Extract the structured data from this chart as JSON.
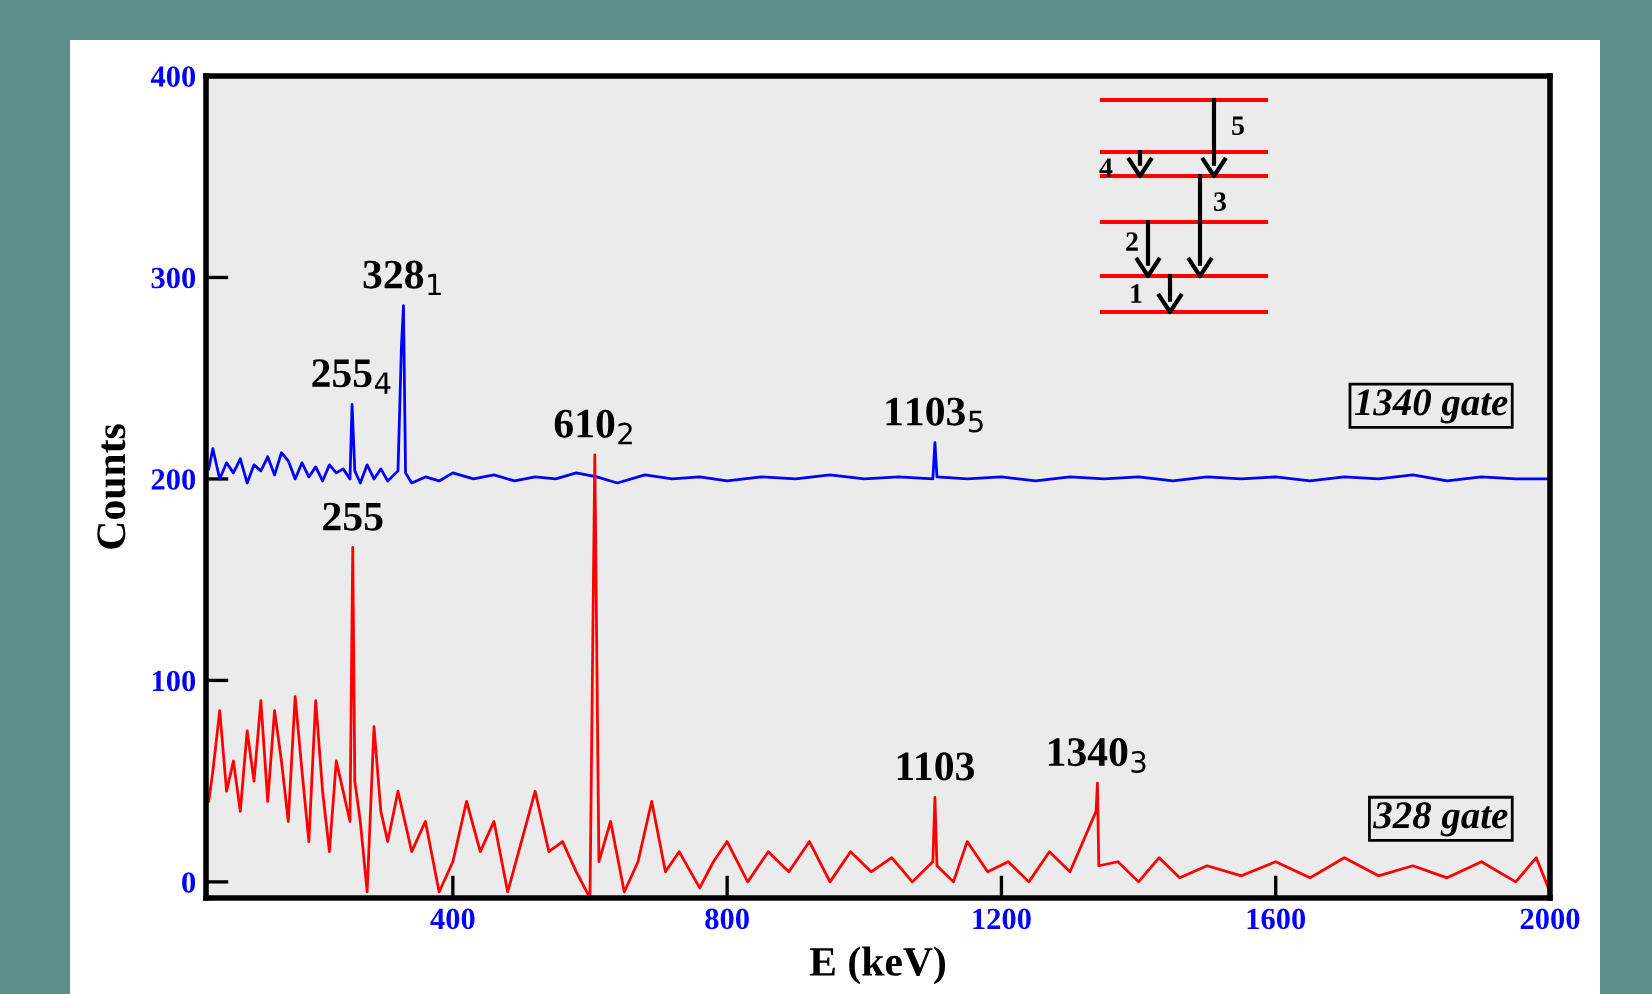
{
  "chart_data": {
    "type": "line",
    "xlabel": "E (keV)",
    "ylabel": "Counts",
    "xlim": [
      40,
      2000
    ],
    "ylim": [
      -8,
      400
    ],
    "xticks": [
      400,
      800,
      1200,
      1600,
      2000
    ],
    "yticks": [
      0,
      100,
      200,
      300,
      400
    ],
    "grid": false,
    "legend": false,
    "series": [
      {
        "name": "1340 gate",
        "color": "#0000ff",
        "x": [
          44,
          50,
          60,
          70,
          80,
          90,
          100,
          110,
          120,
          130,
          140,
          150,
          160,
          170,
          180,
          190,
          200,
          210,
          220,
          230,
          240,
          250,
          253,
          257,
          265,
          275,
          285,
          295,
          305,
          320,
          325,
          328,
          331,
          340,
          360,
          380,
          400,
          430,
          460,
          490,
          520,
          550,
          580,
          610,
          640,
          680,
          720,
          760,
          800,
          850,
          900,
          950,
          1000,
          1050,
          1100,
          1103,
          1106,
          1150,
          1200,
          1250,
          1300,
          1350,
          1400,
          1450,
          1500,
          1550,
          1600,
          1650,
          1700,
          1750,
          1800,
          1850,
          1900,
          1950,
          2000
        ],
        "values": [
          205,
          215,
          200,
          208,
          203,
          210,
          198,
          207,
          204,
          211,
          202,
          213,
          209,
          200,
          208,
          201,
          206,
          199,
          207,
          203,
          205,
          200,
          237,
          204,
          198,
          207,
          200,
          205,
          199,
          204,
          266,
          286,
          203,
          198,
          201,
          199,
          203,
          200,
          202,
          199,
          201,
          200,
          203,
          201,
          198,
          202,
          200,
          201,
          199,
          201,
          200,
          202,
          200,
          201,
          200,
          218,
          201,
          200,
          201,
          199,
          201,
          200,
          201,
          199,
          201,
          200,
          201,
          199,
          201,
          200,
          202,
          199,
          201,
          200,
          200
        ]
      },
      {
        "name": "328 gate",
        "color": "#ff0000",
        "x": [
          44,
          50,
          60,
          70,
          80,
          90,
          100,
          110,
          120,
          130,
          140,
          150,
          160,
          170,
          180,
          190,
          200,
          210,
          220,
          230,
          240,
          250,
          254,
          257,
          265,
          275,
          285,
          295,
          305,
          320,
          340,
          360,
          380,
          400,
          420,
          440,
          460,
          480,
          500,
          520,
          540,
          560,
          580,
          600,
          607,
          613,
          630,
          650,
          670,
          690,
          710,
          730,
          760,
          780,
          800,
          830,
          860,
          890,
          920,
          950,
          980,
          1010,
          1040,
          1070,
          1100,
          1103,
          1106,
          1130,
          1150,
          1180,
          1210,
          1240,
          1270,
          1300,
          1338,
          1340,
          1342,
          1370,
          1400,
          1430,
          1460,
          1500,
          1550,
          1600,
          1650,
          1700,
          1750,
          1800,
          1850,
          1900,
          1950,
          1980,
          2000
        ],
        "values": [
          40,
          55,
          85,
          45,
          60,
          35,
          75,
          50,
          90,
          40,
          85,
          60,
          30,
          92,
          55,
          20,
          90,
          45,
          15,
          60,
          45,
          30,
          166,
          50,
          30,
          -5,
          77,
          35,
          20,
          45,
          15,
          30,
          -5,
          10,
          40,
          15,
          30,
          -5,
          20,
          45,
          15,
          20,
          5,
          -8,
          212,
          10,
          30,
          -5,
          10,
          40,
          5,
          15,
          -3,
          10,
          20,
          0,
          15,
          5,
          20,
          0,
          15,
          5,
          12,
          0,
          10,
          42,
          8,
          0,
          20,
          5,
          10,
          0,
          15,
          5,
          35,
          49,
          8,
          10,
          0,
          12,
          2,
          8,
          3,
          10,
          2,
          12,
          3,
          8,
          2,
          10,
          0,
          12,
          -5
        ]
      }
    ],
    "annotations": [
      {
        "text": "328$_{1}$",
        "x": 328,
        "y": 286
      },
      {
        "text": "255$_{4}$",
        "x": 253,
        "y": 237
      },
      {
        "text": "610$_{2}$",
        "x": 607,
        "y": 212
      },
      {
        "text": "1103$_{5}$",
        "x": 1103,
        "y": 218
      },
      {
        "text": "255",
        "x": 254,
        "y": 166
      },
      {
        "text": "1103",
        "x": 1103,
        "y": 42
      },
      {
        "text": "1340$_{3}$",
        "x": 1340,
        "y": 49
      },
      "1",
      "2",
      "3",
      "4",
      "5"
    ]
  }
}
